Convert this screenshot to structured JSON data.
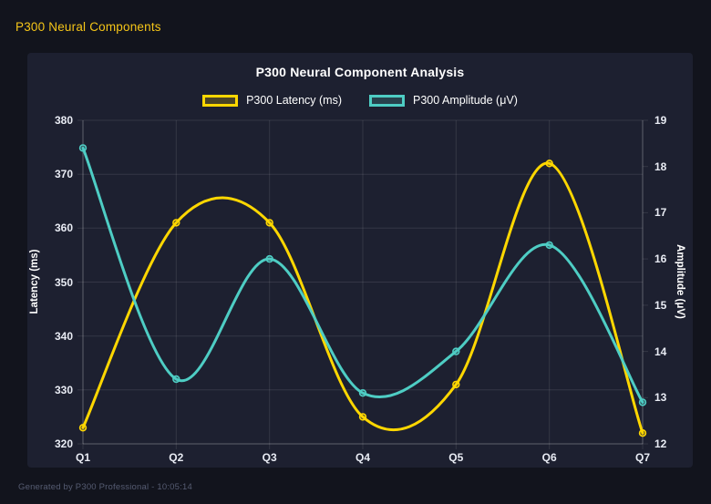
{
  "page": {
    "header": "P300 Neural Components",
    "footer": "Generated by P300 Professional - 10:05:14"
  },
  "colors": {
    "background": "#12141d",
    "panel": "#1d2030",
    "header_text": "#f5c518",
    "title_text": "#ffffff",
    "tick_text": "#e9ecf4",
    "footer_text": "#565c72",
    "grid": "rgba(255,255,255,0.10)",
    "axis_line": "rgba(255,255,255,0.22)",
    "latency_color": "#ffd700",
    "amplitude_color": "#4ecdc4"
  },
  "chart_data": {
    "type": "line",
    "title": "P300 Neural Component Analysis",
    "categories": [
      "Q1",
      "Q2",
      "Q3",
      "Q4",
      "Q5",
      "Q6",
      "Q7"
    ],
    "series": [
      {
        "id": "latency",
        "name": "P300 Latency (ms)",
        "axis": "left",
        "color": "#ffd700",
        "values": [
          323,
          361,
          361,
          325,
          331,
          372,
          322
        ]
      },
      {
        "id": "amplitude",
        "name": "P300 Amplitude (μV)",
        "axis": "right",
        "color": "#4ecdc4",
        "values": [
          18.4,
          13.4,
          16.0,
          13.1,
          14.0,
          16.3,
          12.9
        ]
      }
    ],
    "left_axis": {
      "label": "Latency (ms)",
      "min": 320,
      "max": 380,
      "ticks": [
        320,
        330,
        340,
        350,
        360,
        370,
        380
      ]
    },
    "right_axis": {
      "label": "Amplitude (μV)",
      "min": 12,
      "max": 19,
      "ticks": [
        12,
        13,
        14,
        15,
        16,
        17,
        18,
        19
      ]
    },
    "legend_position": "top",
    "grid": true,
    "smooth": true
  }
}
